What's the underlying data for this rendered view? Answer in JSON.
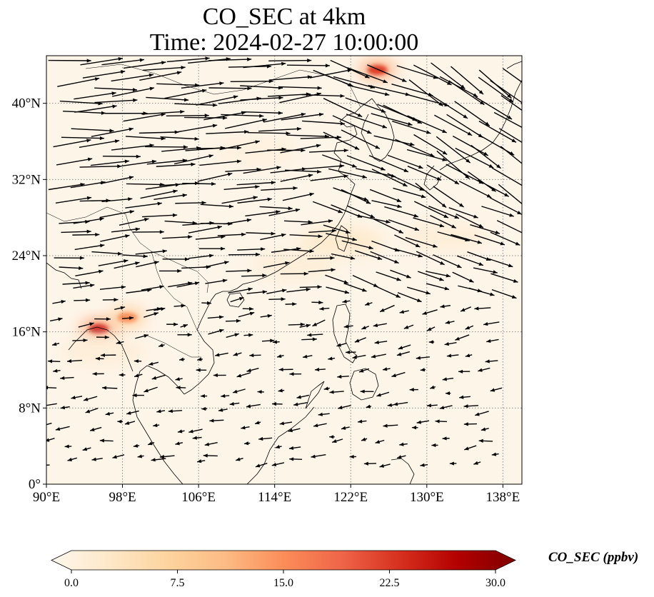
{
  "title": {
    "line1": "CO_SEC at 4km",
    "line2": "Time: 2024-02-27 10:00:00"
  },
  "map": {
    "lon_range": [
      90,
      140
    ],
    "lat_range": [
      0,
      45
    ],
    "x_ticks": [
      {
        "value": 90,
        "label": "90°E"
      },
      {
        "value": 98,
        "label": "98°E"
      },
      {
        "value": 106,
        "label": "106°E"
      },
      {
        "value": 114,
        "label": "114°E"
      },
      {
        "value": 122,
        "label": "122°E"
      },
      {
        "value": 130,
        "label": "130°E"
      },
      {
        "value": 138,
        "label": "138°E"
      }
    ],
    "y_ticks": [
      {
        "value": 0,
        "label": "0°"
      },
      {
        "value": 8,
        "label": "8°N"
      },
      {
        "value": 16,
        "label": "16°N"
      },
      {
        "value": 24,
        "label": "24°N"
      },
      {
        "value": 32,
        "label": "32°N"
      },
      {
        "value": 40,
        "label": "40°N"
      }
    ],
    "gridlines": true,
    "colors": {
      "coast": "#000000",
      "grid": "#888888",
      "arrow": "#000000"
    }
  },
  "colorbar": {
    "label": "CO_SEC (ppbv)",
    "min": 0,
    "max": 30,
    "ticks": [
      "0.0",
      "7.5",
      "15.0",
      "22.5",
      "30.0"
    ],
    "colormap": "OrRd",
    "extend": "both",
    "stops": [
      "#fff7ec",
      "#fee8c8",
      "#fdd49e",
      "#fdbb84",
      "#fc8d59",
      "#ef6548",
      "#d7301f",
      "#b30000",
      "#7f0000"
    ]
  },
  "chart_data": {
    "type": "heatmap",
    "variable": "CO_SEC",
    "units": "ppbv",
    "level": "4km",
    "time": "2024-02-27 10:00:00",
    "x": "longitude",
    "y": "latitude",
    "xlim": [
      90,
      140
    ],
    "ylim": [
      0,
      45
    ],
    "hotspots": [
      {
        "lon": 124.8,
        "lat": 43.5,
        "value": 22
      },
      {
        "lon": 95.5,
        "lat": 16.3,
        "value": 24
      },
      {
        "lon": 98.5,
        "lat": 17.5,
        "value": 15
      },
      {
        "lon": 121.0,
        "lat": 25.5,
        "value": 6
      },
      {
        "lon": 116.0,
        "lat": 23.0,
        "value": 4
      },
      {
        "lon": 112.0,
        "lat": 35.0,
        "value": 3
      },
      {
        "lon": 132.0,
        "lat": 26.0,
        "value": 4
      },
      {
        "lon": 96.0,
        "lat": 14.0,
        "value": 4
      }
    ],
    "wind_field": "vector arrows (westerly north of ~20°N, easterly trade winds south)"
  }
}
